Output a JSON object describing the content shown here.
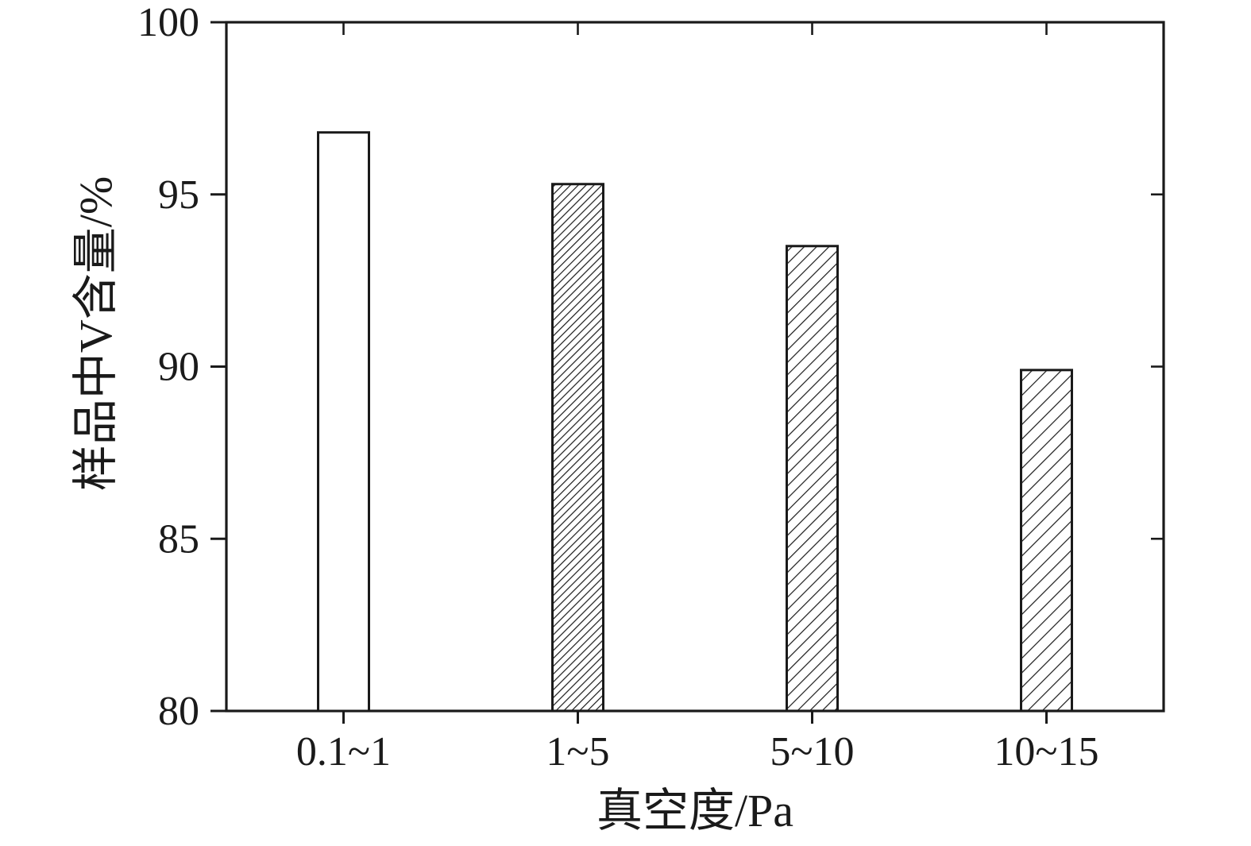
{
  "chart_data": {
    "type": "bar",
    "title": "",
    "categories": [
      "0.1~1",
      "1~5",
      "5~10",
      "10~15"
    ],
    "values": [
      96.8,
      95.3,
      93.5,
      89.9
    ],
    "xlabel": "真空度/Pa",
    "ylabel": "样品中V含量/%",
    "ylim": [
      80,
      100
    ],
    "yticks": [
      80,
      85,
      90,
      95,
      100
    ],
    "bar_fills": [
      "none",
      "hatch-dense",
      "hatch-medium",
      "hatch-light"
    ],
    "bar_face_color": "#ffffff",
    "line_color": "#1a1a1a",
    "grid": false,
    "legend": null
  }
}
